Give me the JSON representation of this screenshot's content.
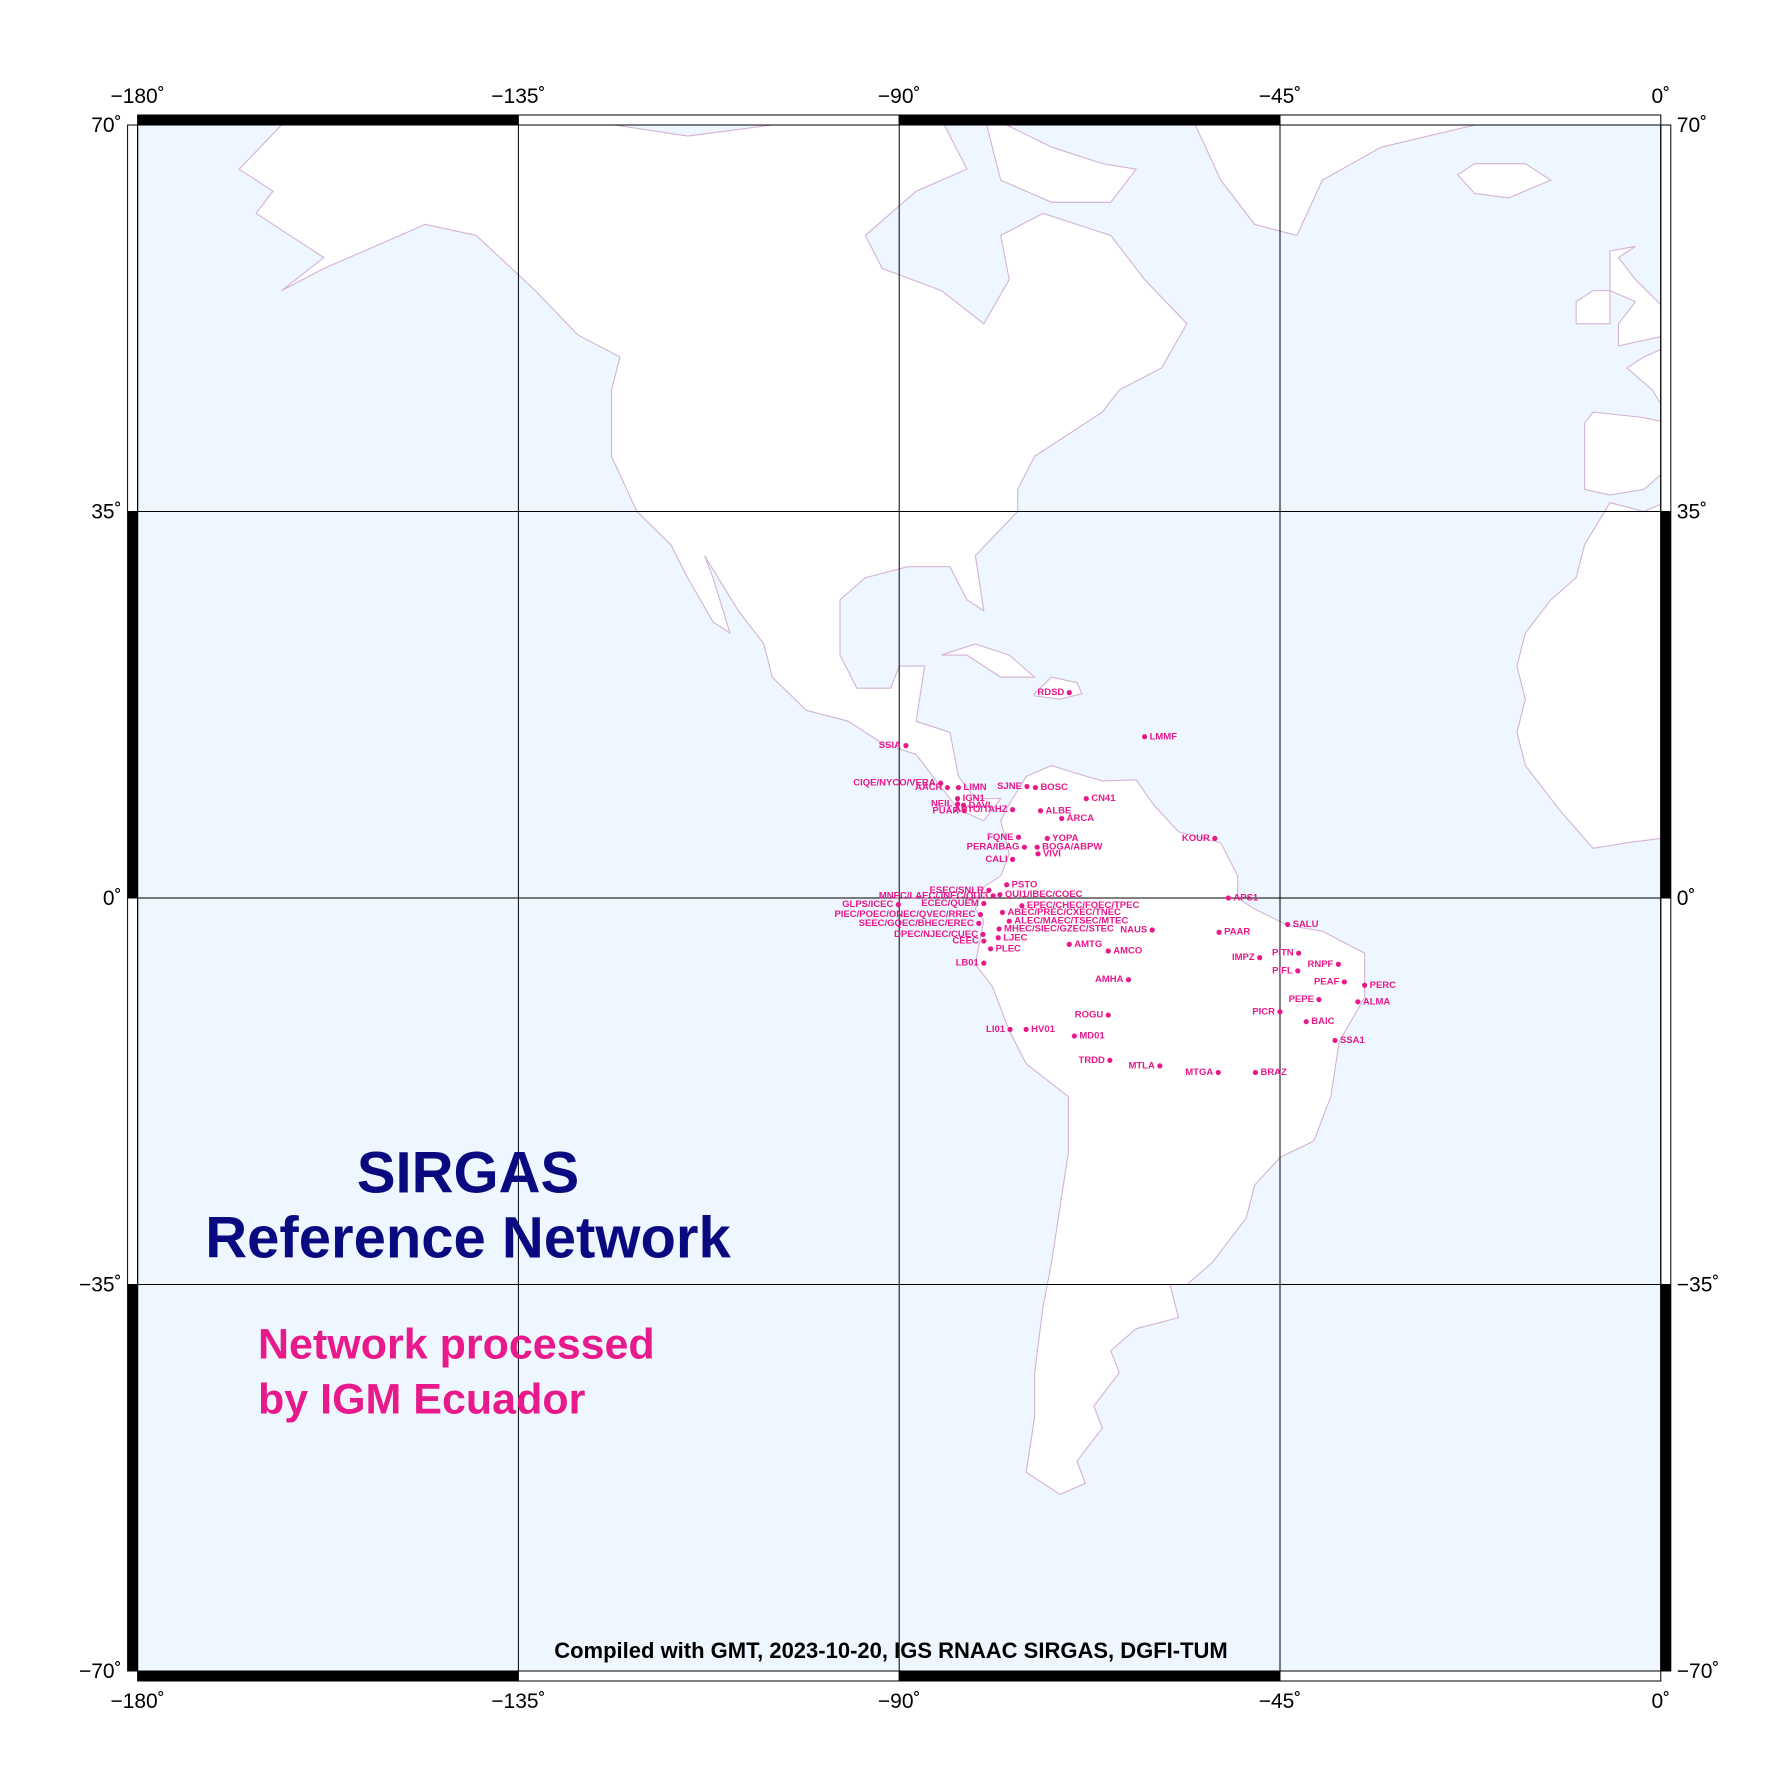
{
  "map": {
    "title": [
      "SIRGAS",
      "Reference Network"
    ],
    "subtitle": [
      "Network processed",
      "by IGM Ecuador"
    ],
    "credit": "Compiled with GMT, 2023-10-20, IGS RNAAC SIRGAS, DGFI-TUM",
    "lon_ticks": [
      {
        "value": -180,
        "label": "−180˚"
      },
      {
        "value": -135,
        "label": "−135˚"
      },
      {
        "value": -90,
        "label": "−90˚"
      },
      {
        "value": -45,
        "label": "−45˚"
      },
      {
        "value": 0,
        "label": "0˚"
      }
    ],
    "lat_ticks": [
      {
        "value": 70,
        "label": "70˚"
      },
      {
        "value": 35,
        "label": "35˚"
      },
      {
        "value": 0,
        "label": "0˚"
      },
      {
        "value": -35,
        "label": "−35˚"
      },
      {
        "value": -70,
        "label": "−70˚"
      }
    ],
    "stations": [
      {
        "name": "RDSD",
        "lon": -69.9,
        "lat": 18.6,
        "label_position": "left"
      },
      {
        "name": "LMMF",
        "lon": -61.0,
        "lat": 14.6,
        "label_position": "right"
      },
      {
        "name": "SSIA",
        "lon": -89.2,
        "lat": 13.8,
        "label_position": "left"
      },
      {
        "name": "CIQE/NYCO/VERA",
        "lon": -85.1,
        "lat": 10.4,
        "label_position": "left"
      },
      {
        "name": "AACR",
        "lon": -84.3,
        "lat": 10.0,
        "label_position": "left"
      },
      {
        "name": "LIMN",
        "lon": -83.0,
        "lat": 10.0,
        "label_position": "right"
      },
      {
        "name": "IGN1",
        "lon": -83.1,
        "lat": 9.0,
        "label_position": "right"
      },
      {
        "name": "NEIL",
        "lon": -83.1,
        "lat": 8.5,
        "label_position": "left"
      },
      {
        "name": "DAVI",
        "lon": -82.4,
        "lat": 8.4,
        "label_position": "right"
      },
      {
        "name": "PUAR",
        "lon": -82.3,
        "lat": 7.9,
        "label_position": "left"
      },
      {
        "name": "SJNE",
        "lon": -74.9,
        "lat": 10.1,
        "label_position": "left"
      },
      {
        "name": "BOSC",
        "lon": -73.9,
        "lat": 10.0,
        "label_position": "right"
      },
      {
        "name": "CN41",
        "lon": -67.9,
        "lat": 9.0,
        "label_position": "right"
      },
      {
        "name": "APTO/TAHZ",
        "lon": -76.6,
        "lat": 8.0,
        "label_position": "left"
      },
      {
        "name": "ALBE",
        "lon": -73.3,
        "lat": 7.9,
        "label_position": "right"
      },
      {
        "name": "ARCA",
        "lon": -70.8,
        "lat": 7.2,
        "label_position": "right"
      },
      {
        "name": "KOUR",
        "lon": -52.7,
        "lat": 5.4,
        "label_position": "left"
      },
      {
        "name": "FQNE",
        "lon": -75.9,
        "lat": 5.5,
        "label_position": "left"
      },
      {
        "name": "YOPA",
        "lon": -72.5,
        "lat": 5.4,
        "label_position": "right"
      },
      {
        "name": "PERA/IBAG",
        "lon": -75.2,
        "lat": 4.6,
        "label_position": "left"
      },
      {
        "name": "BOGA/ABPW",
        "lon": -73.7,
        "lat": 4.6,
        "label_position": "right"
      },
      {
        "name": "CALI",
        "lon": -76.6,
        "lat": 3.5,
        "label_position": "left"
      },
      {
        "name": "VIVI",
        "lon": -73.6,
        "lat": 4.0,
        "label_position": "right"
      },
      {
        "name": "ESEC/SNLR",
        "lon": -79.4,
        "lat": 0.7,
        "label_position": "left"
      },
      {
        "name": "PSTO",
        "lon": -77.3,
        "lat": 1.2,
        "label_position": "right"
      },
      {
        "name": "QUI1/IBEC/COEC",
        "lon": -78.1,
        "lat": 0.3,
        "label_position": "right"
      },
      {
        "name": "MNEC/LAEC/JNEC/QUI3",
        "lon": -78.9,
        "lat": 0.2,
        "label_position": "left"
      },
      {
        "name": "GLPS/ICEC",
        "lon": -90.1,
        "lat": -0.6,
        "label_position": "left"
      },
      {
        "name": "ECEC/QUEM",
        "lon": -80.0,
        "lat": -0.5,
        "label_position": "left"
      },
      {
        "name": "EPEC/CHEC/FOEC/TPEC",
        "lon": -75.5,
        "lat": -0.7,
        "label_position": "right"
      },
      {
        "name": "PIEC/POEC/ONEC/QVEC/RREC",
        "lon": -80.4,
        "lat": -1.5,
        "label_position": "left"
      },
      {
        "name": "ABEC/PREC/CXEC/TNEC",
        "lon": -77.8,
        "lat": -1.3,
        "label_position": "right"
      },
      {
        "name": "SEEC/GQEC/BHEC/EREC",
        "lon": -80.6,
        "lat": -2.3,
        "label_position": "left"
      },
      {
        "name": "ALEC/MAEC/TSEC/MTEC",
        "lon": -77.0,
        "lat": -2.1,
        "label_position": "right"
      },
      {
        "name": "MHEC/SIEC/GZEC/STEC",
        "lon": -78.2,
        "lat": -2.8,
        "label_position": "right"
      },
      {
        "name": "DPEC/NJEC/CUEC",
        "lon": -80.1,
        "lat": -3.3,
        "label_position": "left"
      },
      {
        "name": "LJEC",
        "lon": -78.3,
        "lat": -3.6,
        "label_position": "right"
      },
      {
        "name": "CEEC",
        "lon": -80.0,
        "lat": -3.9,
        "label_position": "left"
      },
      {
        "name": "PLEC",
        "lon": -79.2,
        "lat": -4.6,
        "label_position": "right"
      },
      {
        "name": "LB01",
        "lon": -80.0,
        "lat": -5.9,
        "label_position": "left"
      },
      {
        "name": "AMTG",
        "lon": -69.9,
        "lat": -4.2,
        "label_position": "right"
      },
      {
        "name": "AMCO",
        "lon": -65.3,
        "lat": -4.8,
        "label_position": "right"
      },
      {
        "name": "NAUS",
        "lon": -60.1,
        "lat": -2.9,
        "label_position": "left"
      },
      {
        "name": "APS1",
        "lon": -51.1,
        "lat": 0.0,
        "label_position": "right"
      },
      {
        "name": "SALU",
        "lon": -44.1,
        "lat": -2.4,
        "label_position": "right"
      },
      {
        "name": "PAAR",
        "lon": -52.2,
        "lat": -3.1,
        "label_position": "right"
      },
      {
        "name": "IMPZ",
        "lon": -47.4,
        "lat": -5.4,
        "label_position": "left"
      },
      {
        "name": "PITN",
        "lon": -42.8,
        "lat": -5.0,
        "label_position": "left"
      },
      {
        "name": "RNPF",
        "lon": -38.1,
        "lat": -6.0,
        "label_position": "left"
      },
      {
        "name": "PIFL",
        "lon": -42.9,
        "lat": -6.6,
        "label_position": "left"
      },
      {
        "name": "PEAF",
        "lon": -37.4,
        "lat": -7.6,
        "label_position": "left"
      },
      {
        "name": "PERC",
        "lon": -35.0,
        "lat": -7.9,
        "label_position": "right"
      },
      {
        "name": "ALMA",
        "lon": -35.8,
        "lat": -9.4,
        "label_position": "right"
      },
      {
        "name": "PEPE",
        "lon": -40.4,
        "lat": -9.2,
        "label_position": "left"
      },
      {
        "name": "PICR",
        "lon": -45.0,
        "lat": -10.3,
        "label_position": "left"
      },
      {
        "name": "BAIC",
        "lon": -41.9,
        "lat": -11.2,
        "label_position": "right"
      },
      {
        "name": "SSA1",
        "lon": -38.5,
        "lat": -12.9,
        "label_position": "right"
      },
      {
        "name": "AMHA",
        "lon": -62.9,
        "lat": -7.4,
        "label_position": "left"
      },
      {
        "name": "ROGU",
        "lon": -65.3,
        "lat": -10.6,
        "label_position": "left"
      },
      {
        "name": "LI01",
        "lon": -76.9,
        "lat": -11.9,
        "label_position": "left"
      },
      {
        "name": "HV01",
        "lon": -75.0,
        "lat": -11.9,
        "label_position": "right"
      },
      {
        "name": "MD01",
        "lon": -69.3,
        "lat": -12.5,
        "label_position": "right"
      },
      {
        "name": "TRDD",
        "lon": -65.1,
        "lat": -14.7,
        "label_position": "left"
      },
      {
        "name": "MTLA",
        "lon": -59.2,
        "lat": -15.2,
        "label_position": "left"
      },
      {
        "name": "MTGA",
        "lon": -52.3,
        "lat": -15.8,
        "label_position": "left"
      },
      {
        "name": "BRAZ",
        "lon": -47.9,
        "lat": -15.8,
        "label_position": "right"
      }
    ]
  }
}
